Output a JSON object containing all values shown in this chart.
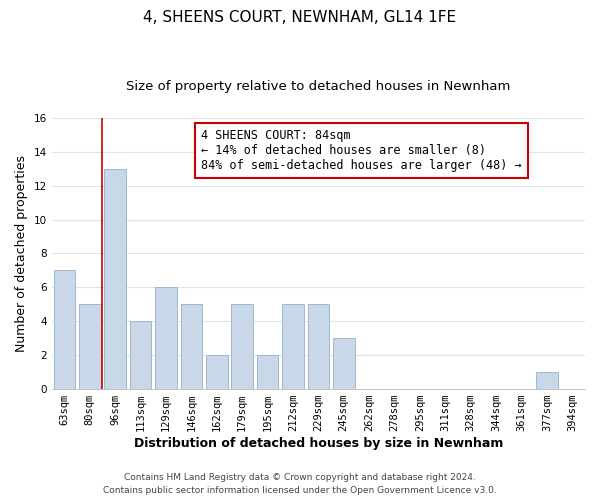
{
  "title": "4, SHEENS COURT, NEWNHAM, GL14 1FE",
  "subtitle": "Size of property relative to detached houses in Newnham",
  "xlabel": "Distribution of detached houses by size in Newnham",
  "ylabel": "Number of detached properties",
  "bar_labels": [
    "63sqm",
    "80sqm",
    "96sqm",
    "113sqm",
    "129sqm",
    "146sqm",
    "162sqm",
    "179sqm",
    "195sqm",
    "212sqm",
    "229sqm",
    "245sqm",
    "262sqm",
    "278sqm",
    "295sqm",
    "311sqm",
    "328sqm",
    "344sqm",
    "361sqm",
    "377sqm",
    "394sqm"
  ],
  "bar_values": [
    7,
    5,
    13,
    4,
    6,
    5,
    2,
    5,
    2,
    5,
    5,
    3,
    0,
    0,
    0,
    0,
    0,
    0,
    0,
    1,
    0
  ],
  "bar_color": "#c8d8e8",
  "bar_edge_color": "#a0b8cc",
  "ylim": [
    0,
    16
  ],
  "yticks": [
    0,
    2,
    4,
    6,
    8,
    10,
    12,
    14,
    16
  ],
  "annotation_box_text": "4 SHEENS COURT: 84sqm\n← 14% of detached houses are smaller (8)\n84% of semi-detached houses are larger (48) →",
  "annotation_box_color": "#ffffff",
  "annotation_box_edge_color": "#cc0000",
  "red_line_x": 1.5,
  "footer_line1": "Contains HM Land Registry data © Crown copyright and database right 2024.",
  "footer_line2": "Contains public sector information licensed under the Open Government Licence v3.0.",
  "background_color": "#ffffff",
  "grid_color": "#d8e4f0",
  "title_fontsize": 11,
  "subtitle_fontsize": 9.5,
  "axis_label_fontsize": 9,
  "tick_fontsize": 7.5,
  "annotation_fontsize": 8.5,
  "footer_fontsize": 6.5
}
